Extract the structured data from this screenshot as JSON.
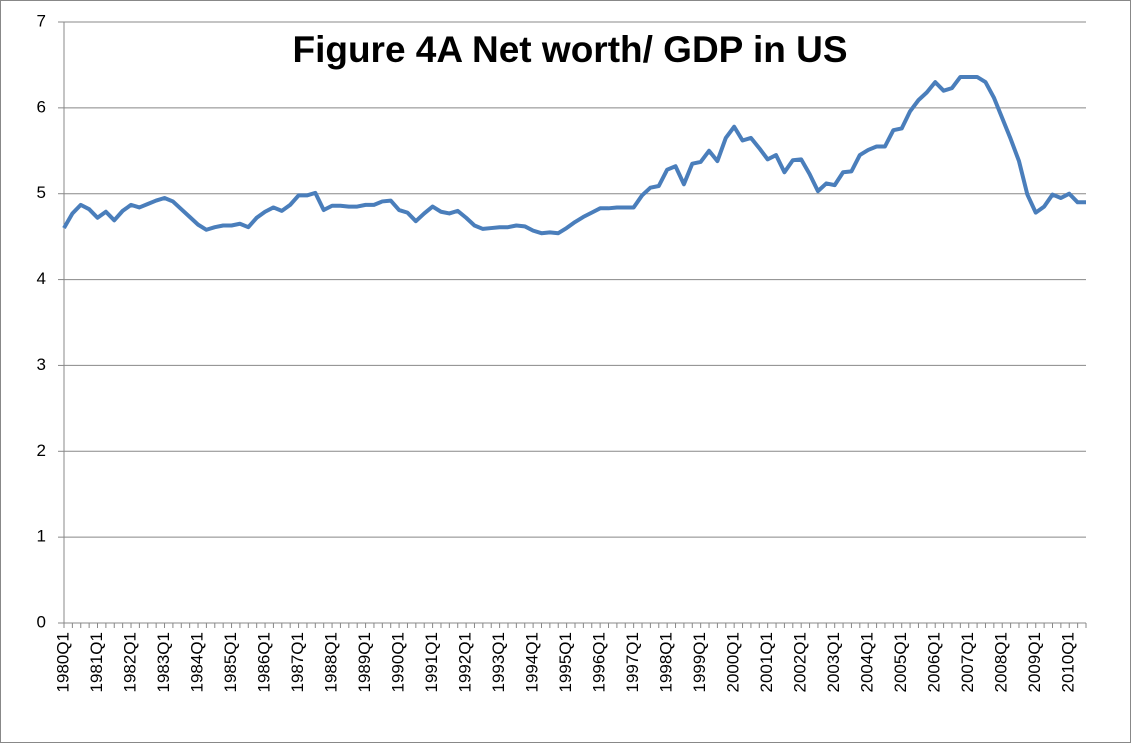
{
  "chart_data": {
    "type": "line",
    "title": "Figure 4A    Net worth/ GDP in US",
    "categories": [
      "1980Q1",
      null,
      null,
      null,
      "1981Q1",
      null,
      null,
      null,
      "1982Q1",
      null,
      null,
      null,
      "1983Q1",
      null,
      null,
      null,
      "1984Q1",
      null,
      null,
      null,
      "1985Q1",
      null,
      null,
      null,
      "1986Q1",
      null,
      null,
      null,
      "1987Q1",
      null,
      null,
      null,
      "1988Q1",
      null,
      null,
      null,
      "1989Q1",
      null,
      null,
      null,
      "1990Q1",
      null,
      null,
      null,
      "1991Q1",
      null,
      null,
      null,
      "1992Q1",
      null,
      null,
      null,
      "1993Q1",
      null,
      null,
      null,
      "1994Q1",
      null,
      null,
      null,
      "1995Q1",
      null,
      null,
      null,
      "1996Q1",
      null,
      null,
      null,
      "1997Q1",
      null,
      null,
      null,
      "1998Q1",
      null,
      null,
      null,
      "1999Q1",
      null,
      null,
      null,
      "2000Q1",
      null,
      null,
      null,
      "2001Q1",
      null,
      null,
      null,
      "2002Q1",
      null,
      null,
      null,
      "2003Q1",
      null,
      null,
      null,
      "2004Q1",
      null,
      null,
      null,
      "2005Q1",
      null,
      null,
      null,
      "2006Q1",
      null,
      null,
      null,
      "2007Q1",
      null,
      null,
      null,
      "2008Q1",
      null,
      null,
      null,
      "2009Q1",
      null,
      null,
      null,
      "2010Q1",
      null,
      null
    ],
    "values": [
      4.6,
      4.77,
      4.87,
      4.82,
      4.72,
      4.79,
      4.69,
      4.8,
      4.87,
      4.84,
      4.88,
      4.92,
      4.95,
      4.91,
      4.82,
      4.73,
      4.64,
      4.58,
      4.61,
      4.63,
      4.63,
      4.65,
      4.61,
      4.72,
      4.79,
      4.84,
      4.8,
      4.87,
      4.98,
      4.98,
      5.01,
      4.81,
      4.86,
      4.86,
      4.85,
      4.85,
      4.87,
      4.87,
      4.91,
      4.92,
      4.81,
      4.78,
      4.68,
      4.77,
      4.85,
      4.79,
      4.77,
      4.8,
      4.72,
      4.63,
      4.59,
      4.6,
      4.61,
      4.61,
      4.63,
      4.62,
      4.57,
      4.54,
      4.55,
      4.54,
      4.6,
      4.67,
      4.73,
      4.78,
      4.83,
      4.83,
      4.84,
      4.84,
      4.84,
      4.98,
      5.07,
      5.09,
      5.28,
      5.32,
      5.11,
      5.35,
      5.37,
      5.5,
      5.38,
      5.65,
      5.78,
      5.62,
      5.65,
      5.53,
      5.4,
      5.45,
      5.25,
      5.39,
      5.4,
      5.23,
      5.03,
      5.12,
      5.1,
      5.25,
      5.26,
      5.45,
      5.51,
      5.55,
      5.55,
      5.74,
      5.76,
      5.96,
      6.09,
      6.18,
      6.3,
      6.2,
      6.23,
      6.36,
      6.36,
      6.36,
      6.3,
      6.12,
      5.88,
      5.64,
      5.38,
      4.99,
      4.78,
      4.85,
      4.99,
      4.95,
      5.0,
      4.9,
      4.9
    ],
    "color": "#4a7ebb",
    "ylim": [
      0,
      7
    ],
    "yticks": [
      0,
      1,
      2,
      3,
      4,
      5,
      6,
      7
    ],
    "grid": true
  }
}
